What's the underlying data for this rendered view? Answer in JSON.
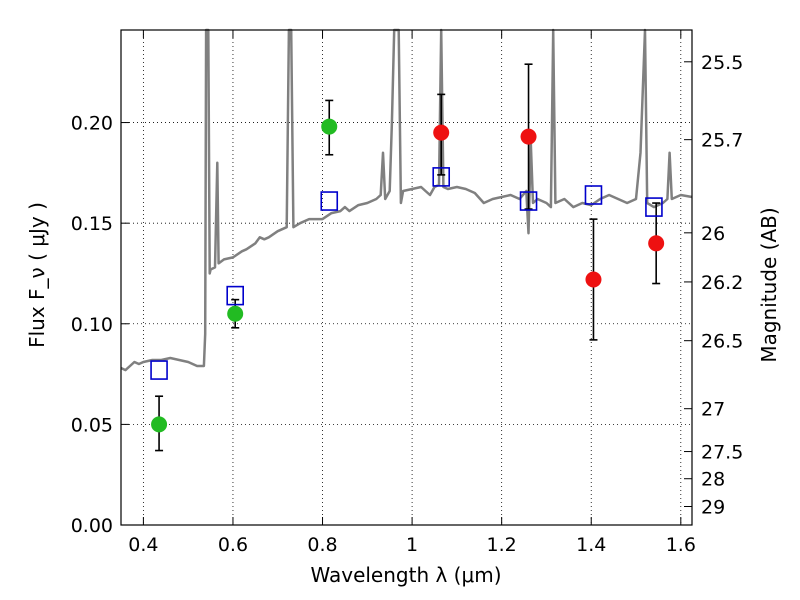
{
  "chart_data": {
    "type": "scatter",
    "xlabel": "Wavelength  λ (μm)",
    "ylabel_left": "Flux  F_ν  ( μJy )",
    "ylabel_right": "Magnitude (AB)",
    "xlim": [
      0.35,
      1.625
    ],
    "ylim": [
      0.0,
      0.246
    ],
    "grid": true,
    "x_ticks": [
      0.4,
      0.6,
      0.8,
      1.0,
      1.2,
      1.4,
      1.6
    ],
    "x_tick_labels": [
      "0.4",
      "0.6",
      "0.8",
      "1",
      "1.2",
      "1.4",
      "1.6"
    ],
    "y_ticks": [
      0.0,
      0.05,
      0.1,
      0.15,
      0.2
    ],
    "y_tick_labels": [
      "0.00",
      "0.05",
      "0.10",
      "0.15",
      "0.20"
    ],
    "right_ticks": [
      {
        "label": "25.5",
        "flux": 0.2302
      },
      {
        "label": "25.7",
        "flux": 0.1915
      },
      {
        "label": "26",
        "flux": 0.1452
      },
      {
        "label": "26.2",
        "flux": 0.1208
      },
      {
        "label": "26.5",
        "flux": 0.0916
      },
      {
        "label": "27",
        "flux": 0.0578
      },
      {
        "label": "27.5",
        "flux": 0.0365
      },
      {
        "label": "28",
        "flux": 0.023
      },
      {
        "label": "29",
        "flux": 0.0092
      }
    ],
    "series": [
      {
        "kind": "spectrum",
        "color": "#808080",
        "points": [
          [
            0.35,
            0.078
          ],
          [
            0.36,
            0.077
          ],
          [
            0.37,
            0.079
          ],
          [
            0.38,
            0.081
          ],
          [
            0.39,
            0.08
          ],
          [
            0.4,
            0.081
          ],
          [
            0.42,
            0.082
          ],
          [
            0.44,
            0.082
          ],
          [
            0.46,
            0.083
          ],
          [
            0.48,
            0.082
          ],
          [
            0.5,
            0.081
          ],
          [
            0.52,
            0.079
          ],
          [
            0.535,
            0.079
          ],
          [
            0.538,
            0.095
          ],
          [
            0.54,
            0.246
          ],
          [
            0.545,
            0.246
          ],
          [
            0.548,
            0.125
          ],
          [
            0.55,
            0.127
          ],
          [
            0.56,
            0.128
          ],
          [
            0.565,
            0.18
          ],
          [
            0.568,
            0.13
          ],
          [
            0.58,
            0.132
          ],
          [
            0.6,
            0.133
          ],
          [
            0.62,
            0.136
          ],
          [
            0.63,
            0.137
          ],
          [
            0.65,
            0.14
          ],
          [
            0.66,
            0.143
          ],
          [
            0.67,
            0.142
          ],
          [
            0.68,
            0.143
          ],
          [
            0.7,
            0.146
          ],
          [
            0.72,
            0.148
          ],
          [
            0.725,
            0.246
          ],
          [
            0.73,
            0.246
          ],
          [
            0.735,
            0.148
          ],
          [
            0.75,
            0.15
          ],
          [
            0.77,
            0.152
          ],
          [
            0.8,
            0.152
          ],
          [
            0.82,
            0.155
          ],
          [
            0.84,
            0.156
          ],
          [
            0.85,
            0.158
          ],
          [
            0.86,
            0.156
          ],
          [
            0.88,
            0.159
          ],
          [
            0.9,
            0.16
          ],
          [
            0.92,
            0.162
          ],
          [
            0.93,
            0.164
          ],
          [
            0.935,
            0.185
          ],
          [
            0.94,
            0.162
          ],
          [
            0.95,
            0.166
          ],
          [
            0.955,
            0.2
          ],
          [
            0.96,
            0.246
          ],
          [
            0.97,
            0.246
          ],
          [
            0.975,
            0.16
          ],
          [
            0.98,
            0.166
          ],
          [
            1.0,
            0.167
          ],
          [
            1.02,
            0.168
          ],
          [
            1.03,
            0.166
          ],
          [
            1.04,
            0.164
          ],
          [
            1.05,
            0.168
          ],
          [
            1.06,
            0.169
          ],
          [
            1.065,
            0.246
          ],
          [
            1.07,
            0.168
          ],
          [
            1.08,
            0.167
          ],
          [
            1.1,
            0.168
          ],
          [
            1.12,
            0.167
          ],
          [
            1.14,
            0.165
          ],
          [
            1.16,
            0.16
          ],
          [
            1.18,
            0.162
          ],
          [
            1.2,
            0.163
          ],
          [
            1.22,
            0.164
          ],
          [
            1.24,
            0.162
          ],
          [
            1.255,
            0.166
          ],
          [
            1.26,
            0.145
          ],
          [
            1.265,
            0.19
          ],
          [
            1.27,
            0.16
          ],
          [
            1.28,
            0.162
          ],
          [
            1.3,
            0.16
          ],
          [
            1.31,
            0.158
          ],
          [
            1.315,
            0.246
          ],
          [
            1.32,
            0.16
          ],
          [
            1.34,
            0.162
          ],
          [
            1.36,
            0.158
          ],
          [
            1.38,
            0.16
          ],
          [
            1.4,
            0.159
          ],
          [
            1.42,
            0.162
          ],
          [
            1.44,
            0.164
          ],
          [
            1.46,
            0.162
          ],
          [
            1.48,
            0.16
          ],
          [
            1.5,
            0.162
          ],
          [
            1.51,
            0.185
          ],
          [
            1.52,
            0.246
          ],
          [
            1.525,
            0.16
          ],
          [
            1.54,
            0.158
          ],
          [
            1.56,
            0.16
          ],
          [
            1.57,
            0.162
          ],
          [
            1.575,
            0.185
          ],
          [
            1.58,
            0.162
          ],
          [
            1.6,
            0.164
          ],
          [
            1.625,
            0.163
          ]
        ]
      },
      {
        "kind": "model_bandpass",
        "marker": "open-square",
        "color": "#0000cc",
        "points": [
          [
            0.435,
            0.077
          ],
          [
            0.605,
            0.114
          ],
          [
            0.815,
            0.161
          ],
          [
            1.065,
            0.173
          ],
          [
            1.26,
            0.161
          ],
          [
            1.405,
            0.164
          ],
          [
            1.54,
            0.158
          ]
        ]
      },
      {
        "kind": "observed",
        "marker": "filled-circle",
        "color": "#22bb22",
        "points": [
          {
            "x": 0.435,
            "y": 0.05,
            "yerr_low": 0.037,
            "yerr_high": 0.064
          },
          {
            "x": 0.605,
            "y": 0.105,
            "yerr_low": 0.098,
            "yerr_high": 0.112
          },
          {
            "x": 0.815,
            "y": 0.198,
            "yerr_low": 0.184,
            "yerr_high": 0.211
          }
        ]
      },
      {
        "kind": "observed",
        "marker": "filled-circle",
        "color": "#ee1111",
        "points": [
          {
            "x": 1.065,
            "y": 0.195,
            "yerr_low": 0.174,
            "yerr_high": 0.214
          },
          {
            "x": 1.26,
            "y": 0.193,
            "yerr_low": 0.157,
            "yerr_high": 0.229
          },
          {
            "x": 1.405,
            "y": 0.122,
            "yerr_low": 0.092,
            "yerr_high": 0.152
          },
          {
            "x": 1.545,
            "y": 0.14,
            "yerr_low": 0.12,
            "yerr_high": 0.16
          }
        ]
      }
    ]
  }
}
